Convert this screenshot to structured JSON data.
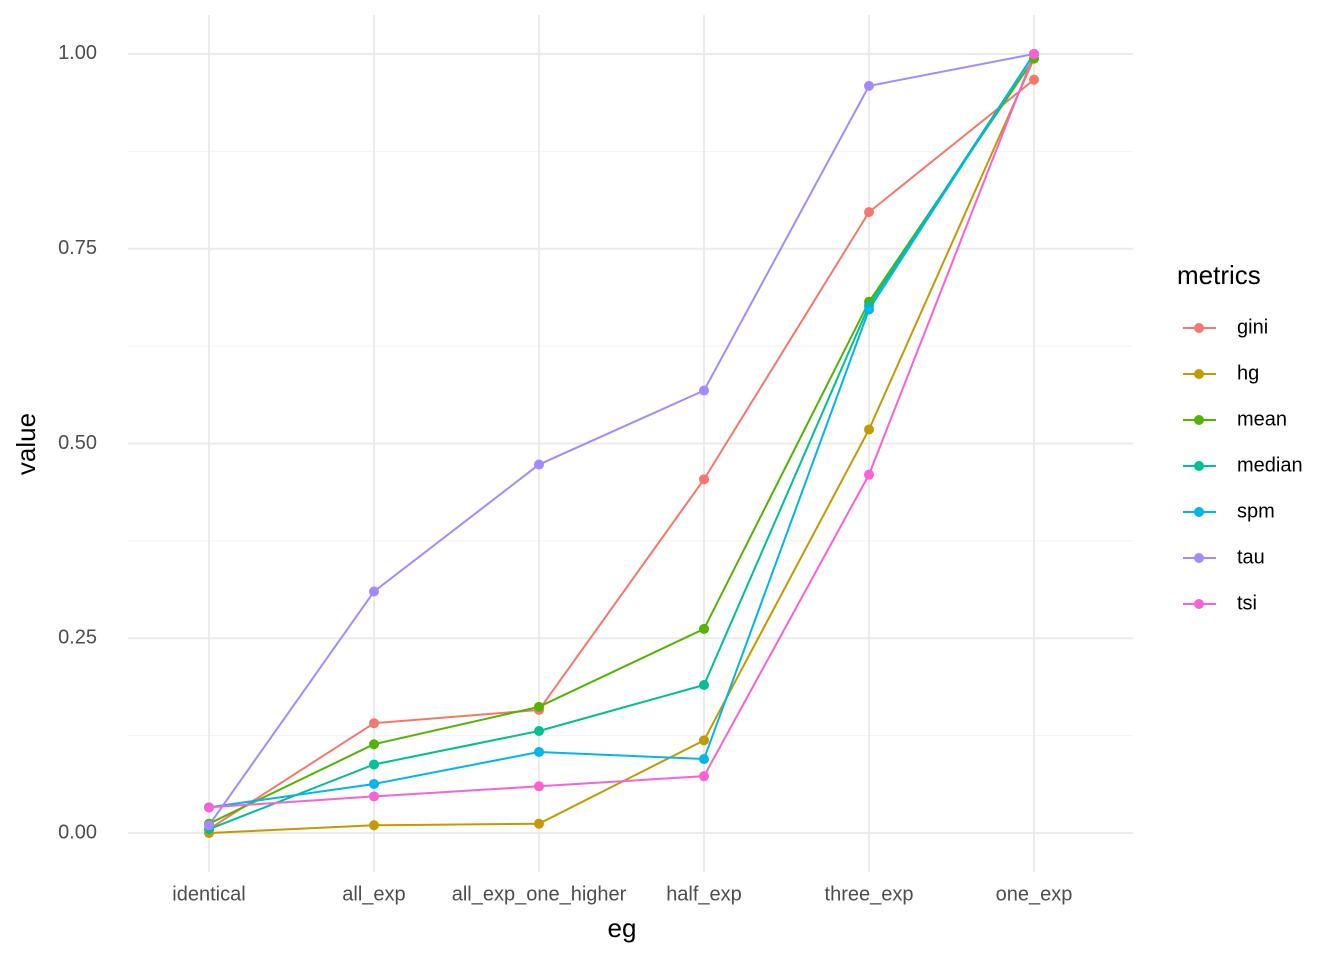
{
  "chart_data": {
    "type": "line",
    "x_label": "eg",
    "y_label": "value",
    "legend_title": "metrics",
    "categories": [
      "identical",
      "all_exp",
      "all_exp_one_higher",
      "half_exp",
      "three_exp",
      "one_exp"
    ],
    "series": [
      {
        "name": "gini",
        "color": "#F8766D",
        "values": [
          0.005,
          0.141,
          0.158,
          0.454,
          0.797,
          0.967
        ]
      },
      {
        "name": "hg",
        "color": "#C49A00",
        "values": [
          0,
          0.01,
          0.012,
          0.119,
          0.518,
          0.994
        ]
      },
      {
        "name": "mean",
        "color": "#53B400",
        "values": [
          0.012,
          0.114,
          0.162,
          0.262,
          0.682,
          0.994
        ]
      },
      {
        "name": "median",
        "color": "#00C094",
        "values": [
          0.005,
          0.088,
          0.131,
          0.19,
          0.677,
          1.0
        ]
      },
      {
        "name": "spm",
        "color": "#00B6EB",
        "values": [
          0.033,
          0.063,
          0.104,
          0.095,
          0.672,
          1.0
        ]
      },
      {
        "name": "tau",
        "color": "#A58AFF",
        "values": [
          0.01,
          0.31,
          0.473,
          0.568,
          0.959,
          1.0
        ]
      },
      {
        "name": "tsi",
        "color": "#FB61D7",
        "values": [
          0.033,
          0.047,
          0.06,
          0.073,
          0.46,
          1.0
        ]
      }
    ],
    "ylim": [
      -0.05,
      1.05
    ],
    "yticks": [
      {
        "value": 0,
        "label": "0.00"
      },
      {
        "value": 0.25,
        "label": "0.25"
      },
      {
        "value": 0.5,
        "label": "0.50"
      },
      {
        "value": 0.75,
        "label": "0.75"
      },
      {
        "value": 1,
        "label": "1.00"
      }
    ],
    "grid": true,
    "legend": "right"
  }
}
